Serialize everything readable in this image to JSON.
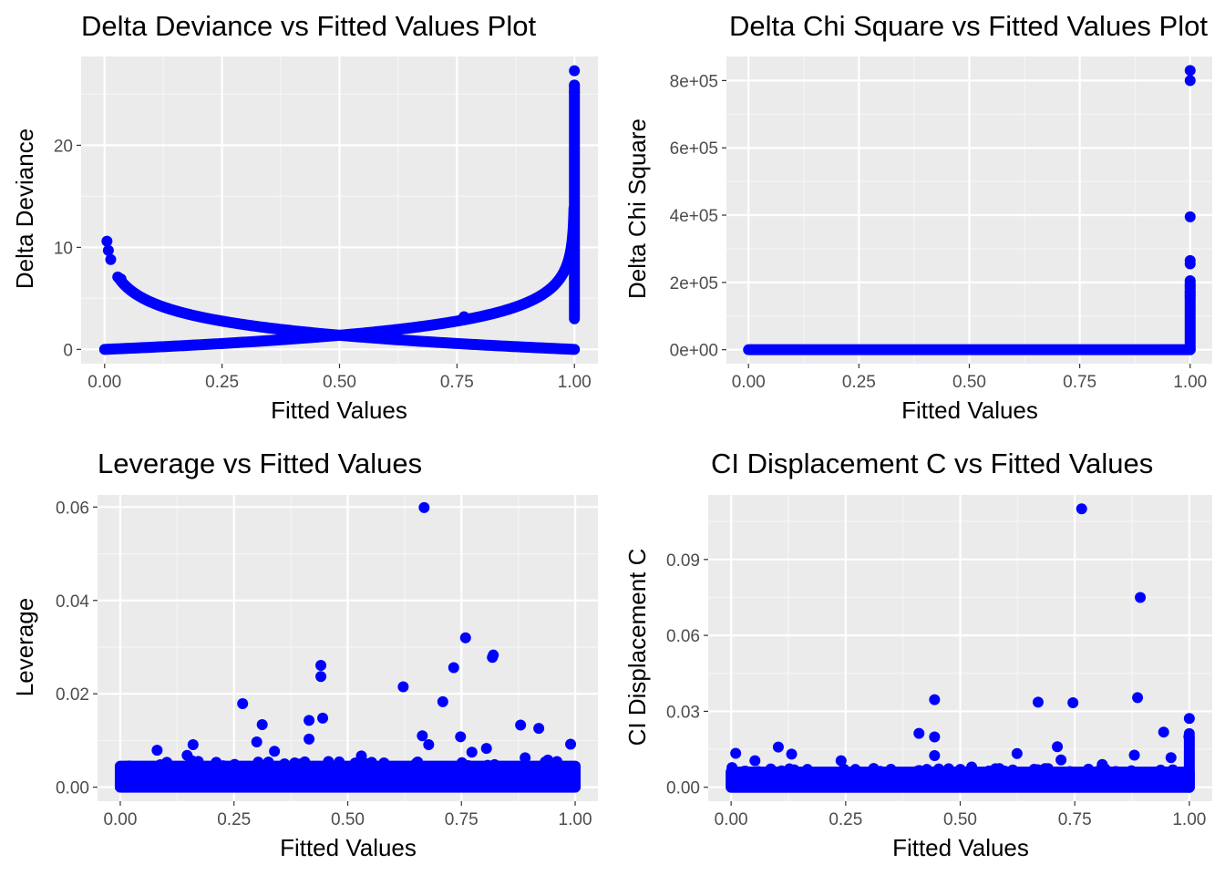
{
  "colors": {
    "panel_bg": "#ebebeb",
    "grid_major": "#ffffff",
    "grid_minor": "#f5f5f5",
    "tick": "#333333",
    "point": "#0000ff"
  },
  "chart_data": [
    {
      "type": "scatter",
      "title": "Delta Deviance vs Fitted Values Plot",
      "xlabel": "Fitted Values",
      "ylabel": "Delta Deviance",
      "xlim": [
        -0.05,
        1.05
      ],
      "ylim": [
        -1.4,
        28.7
      ],
      "xticks": [
        0,
        0.25,
        0.5,
        0.75,
        1
      ],
      "xtick_labels": [
        "0.00",
        "0.25",
        "0.50",
        "0.75",
        "1.00"
      ],
      "yticks": [
        0,
        10,
        20
      ],
      "ytick_labels": [
        "0",
        "10",
        "20"
      ],
      "grid": true,
      "series": [
        {
          "shape": "curve",
          "formula": "-2*ln(1-x)",
          "x_range": [
            0.0,
            0.999
          ],
          "description_points": [
            [
              0.0,
              0.0
            ],
            [
              0.25,
              0.58
            ],
            [
              0.5,
              1.39
            ],
            [
              0.75,
              2.77
            ],
            [
              0.9,
              4.6
            ],
            [
              0.99,
              9.2
            ]
          ]
        },
        {
          "shape": "curve",
          "formula": "-2*ln(x)",
          "x_range": [
            0.03,
            1.0
          ],
          "description_points": [
            [
              0.03,
              7.0
            ],
            [
              0.25,
              2.77
            ],
            [
              0.5,
              1.39
            ],
            [
              0.75,
              0.58
            ],
            [
              1.0,
              0.0
            ]
          ]
        },
        {
          "shape": "vertical",
          "x": 1.0,
          "y_range": [
            3.0,
            25.9
          ]
        }
      ],
      "points": [
        [
          0.005,
          10.6
        ],
        [
          0.008,
          9.7
        ],
        [
          0.013,
          8.8
        ],
        [
          0.028,
          7.1
        ],
        [
          0.035,
          6.9
        ],
        [
          0.765,
          3.2
        ],
        [
          1.0,
          27.3
        ],
        [
          1.0,
          25.9
        ],
        [
          1.0,
          25.2
        ]
      ]
    },
    {
      "type": "scatter",
      "title": "Delta Chi Square vs Fitted Values Plot",
      "xlabel": "Fitted Values",
      "ylabel": "Delta Chi Square",
      "xlim": [
        -0.05,
        1.05
      ],
      "ylim": [
        -41500,
        871500
      ],
      "xticks": [
        0,
        0.25,
        0.5,
        0.75,
        1
      ],
      "xtick_labels": [
        "0.00",
        "0.25",
        "0.50",
        "0.75",
        "1.00"
      ],
      "yticks": [
        0,
        200000,
        400000,
        600000,
        800000
      ],
      "ytick_labels": [
        "0e+00",
        "2e+05",
        "4e+05",
        "6e+05",
        "8e+05"
      ],
      "grid": true,
      "series": [
        {
          "shape": "horizontal",
          "y": 0,
          "x_range": [
            0.0,
            1.0
          ]
        },
        {
          "shape": "vertical",
          "x": 1.0,
          "y_range": [
            0,
            200000
          ]
        }
      ],
      "points": [
        [
          1.0,
          830000
        ],
        [
          1.0,
          800000
        ],
        [
          1.0,
          395000
        ],
        [
          1.0,
          265000
        ],
        [
          1.0,
          255000
        ],
        [
          1.0,
          205000
        ],
        [
          1.0,
          190000
        ],
        [
          1.0,
          172000
        ],
        [
          1.0,
          160000
        ]
      ]
    },
    {
      "type": "scatter",
      "title": "Leverage vs Fitted Values",
      "xlabel": "Fitted Values",
      "ylabel": "Leverage",
      "xlim": [
        -0.05,
        1.05
      ],
      "ylim": [
        -0.003,
        0.0626
      ],
      "xticks": [
        0,
        0.25,
        0.5,
        0.75,
        1
      ],
      "xtick_labels": [
        "0.00",
        "0.25",
        "0.50",
        "0.75",
        "1.00"
      ],
      "yticks": [
        0,
        0.02,
        0.04,
        0.06
      ],
      "ytick_labels": [
        "0.00",
        "0.02",
        "0.04",
        "0.06"
      ],
      "grid": true,
      "series": [
        {
          "shape": "band",
          "x_range": [
            0.0,
            1.0
          ],
          "y_range": [
            0.0,
            0.0045
          ]
        }
      ],
      "points": [
        [
          0.668,
          0.0599
        ],
        [
          0.759,
          0.032
        ],
        [
          0.82,
          0.0283
        ],
        [
          0.818,
          0.0278
        ],
        [
          0.441,
          0.0261
        ],
        [
          0.441,
          0.0237
        ],
        [
          0.733,
          0.0256
        ],
        [
          0.622,
          0.0215
        ],
        [
          0.269,
          0.0179
        ],
        [
          0.709,
          0.0183
        ],
        [
          0.312,
          0.0134
        ],
        [
          0.415,
          0.0143
        ],
        [
          0.445,
          0.0148
        ],
        [
          0.415,
          0.0103
        ],
        [
          0.3,
          0.0097
        ],
        [
          0.339,
          0.0077
        ],
        [
          0.16,
          0.0091
        ],
        [
          0.147,
          0.0068
        ],
        [
          0.081,
          0.0079
        ],
        [
          0.157,
          0.0057
        ],
        [
          0.055,
          0.0038
        ],
        [
          0.53,
          0.0067
        ],
        [
          0.664,
          0.011
        ],
        [
          0.678,
          0.0091
        ],
        [
          0.748,
          0.0108
        ],
        [
          0.805,
          0.0083
        ],
        [
          0.773,
          0.0075
        ],
        [
          0.88,
          0.0133
        ],
        [
          0.92,
          0.0126
        ],
        [
          0.99,
          0.0092
        ],
        [
          0.89,
          0.0063
        ],
        [
          0.96,
          0.0055
        ],
        [
          0.94,
          0.0058
        ],
        [
          0.97,
          0.0036
        ]
      ]
    },
    {
      "type": "scatter",
      "title": "CI Displacement C vs Fitted Values",
      "xlabel": "Fitted Values",
      "ylabel": "CI Displacement C",
      "xlim": [
        -0.05,
        1.05
      ],
      "ylim": [
        -0.0055,
        0.1155
      ],
      "xticks": [
        0,
        0.25,
        0.5,
        0.75,
        1
      ],
      "xtick_labels": [
        "0.00",
        "0.25",
        "0.50",
        "0.75",
        "1.00"
      ],
      "yticks": [
        0,
        0.03,
        0.06,
        0.09
      ],
      "ytick_labels": [
        "0.00",
        "0.03",
        "0.06",
        "0.09"
      ],
      "grid": true,
      "series": [
        {
          "shape": "band",
          "x_range": [
            0.0,
            1.0
          ],
          "y_range": [
            0.0,
            0.006
          ]
        },
        {
          "shape": "vertical",
          "x": 1.0,
          "y_range": [
            0,
            0.02
          ]
        }
      ],
      "points": [
        [
          0.765,
          0.11
        ],
        [
          0.893,
          0.075
        ],
        [
          0.887,
          0.0354
        ],
        [
          0.444,
          0.0346
        ],
        [
          0.67,
          0.0336
        ],
        [
          0.746,
          0.0334
        ],
        [
          1.0,
          0.0272
        ],
        [
          1.0,
          0.0212
        ],
        [
          0.999,
          0.02
        ],
        [
          0.41,
          0.0213
        ],
        [
          0.444,
          0.0199
        ],
        [
          0.444,
          0.0125
        ],
        [
          0.944,
          0.0218
        ],
        [
          0.712,
          0.016
        ],
        [
          0.624,
          0.0133
        ],
        [
          0.103,
          0.0159
        ],
        [
          0.132,
          0.0131
        ],
        [
          0.01,
          0.0134
        ],
        [
          0.002,
          0.0078
        ],
        [
          0.052,
          0.0105
        ],
        [
          0.24,
          0.0105
        ],
        [
          0.88,
          0.0127
        ],
        [
          0.96,
          0.0117
        ],
        [
          0.72,
          0.0108
        ],
        [
          0.81,
          0.009
        ],
        [
          0.525,
          0.008
        ]
      ]
    }
  ]
}
